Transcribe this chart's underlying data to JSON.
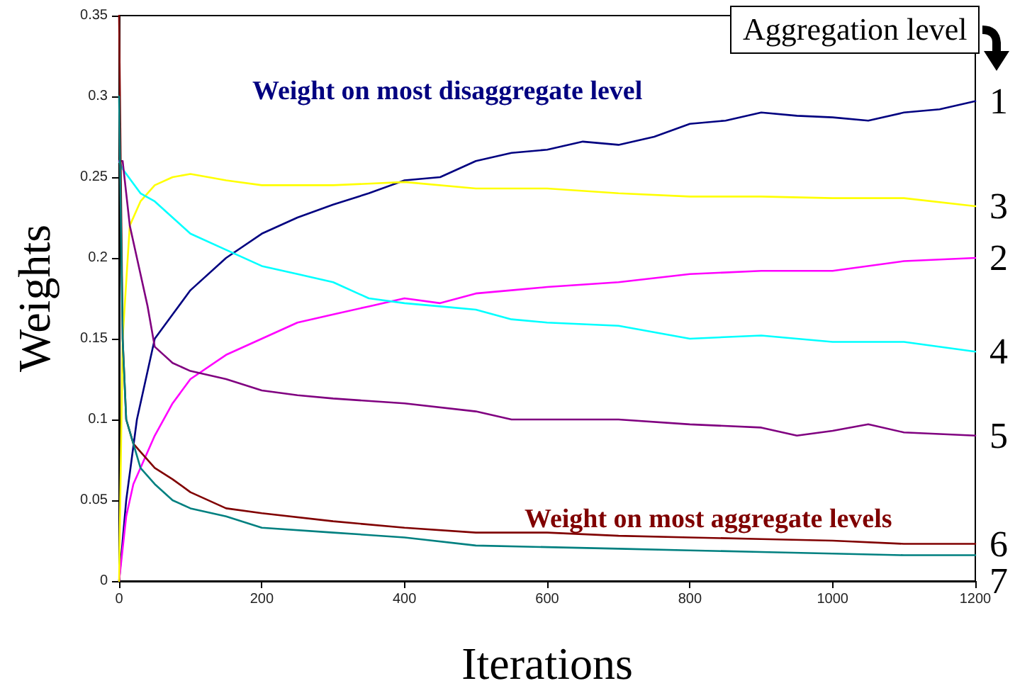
{
  "chart_data": {
    "type": "line",
    "xlabel": "Iterations",
    "ylabel": "Weights",
    "legend_title": "Aggregation level",
    "annotations": [
      "Weight on most disaggregate level",
      "Weight on most aggregate levels"
    ],
    "xlim": [
      0,
      1200
    ],
    "xticks": [
      0,
      200,
      400,
      600,
      800,
      1000,
      1200
    ],
    "ylim": [
      0,
      0.35
    ],
    "yticks": [
      0,
      0.05,
      0.1,
      0.15,
      0.2,
      0.25,
      0.3,
      0.35
    ],
    "grid": false,
    "legend": false,
    "marker": "none",
    "line_style": "solid",
    "series": [
      {
        "name": "1",
        "color": "#000080",
        "x": [
          0,
          10,
          25,
          50,
          75,
          100,
          150,
          200,
          250,
          300,
          350,
          400,
          450,
          500,
          550,
          600,
          650,
          700,
          750,
          800,
          850,
          900,
          950,
          1000,
          1050,
          1100,
          1150,
          1200
        ],
        "values": [
          0,
          0.05,
          0.1,
          0.15,
          0.165,
          0.18,
          0.2,
          0.215,
          0.225,
          0.233,
          0.24,
          0.248,
          0.25,
          0.26,
          0.265,
          0.267,
          0.272,
          0.27,
          0.275,
          0.283,
          0.285,
          0.29,
          0.288,
          0.287,
          0.285,
          0.29,
          0.292,
          0.297
        ]
      },
      {
        "name": "2",
        "color": "#ff00ff",
        "x": [
          0,
          10,
          20,
          50,
          75,
          100,
          150,
          200,
          250,
          300,
          350,
          400,
          450,
          500,
          550,
          600,
          700,
          800,
          900,
          1000,
          1100,
          1200
        ],
        "values": [
          0,
          0.04,
          0.06,
          0.09,
          0.11,
          0.125,
          0.14,
          0.15,
          0.16,
          0.165,
          0.17,
          0.175,
          0.172,
          0.178,
          0.18,
          0.182,
          0.185,
          0.19,
          0.192,
          0.192,
          0.198,
          0.2
        ]
      },
      {
        "name": "3",
        "color": "#ffff00",
        "x": [
          0,
          5,
          15,
          30,
          50,
          75,
          100,
          150,
          200,
          300,
          400,
          500,
          600,
          700,
          800,
          900,
          1000,
          1100,
          1200
        ],
        "values": [
          0,
          0.15,
          0.22,
          0.235,
          0.245,
          0.25,
          0.252,
          0.248,
          0.245,
          0.245,
          0.247,
          0.243,
          0.243,
          0.24,
          0.238,
          0.238,
          0.237,
          0.237,
          0.232
        ]
      },
      {
        "name": "4",
        "color": "#00ffff",
        "x": [
          0,
          5,
          30,
          50,
          75,
          100,
          150,
          200,
          250,
          300,
          350,
          400,
          450,
          500,
          550,
          600,
          700,
          800,
          900,
          1000,
          1100,
          1200
        ],
        "values": [
          0.26,
          0.255,
          0.24,
          0.235,
          0.225,
          0.215,
          0.205,
          0.195,
          0.19,
          0.185,
          0.175,
          0.172,
          0.17,
          0.168,
          0.162,
          0.16,
          0.158,
          0.15,
          0.152,
          0.148,
          0.148,
          0.142
        ]
      },
      {
        "name": "5",
        "color": "#800080",
        "x": [
          0,
          5,
          10,
          15,
          25,
          40,
          50,
          75,
          100,
          150,
          200,
          250,
          300,
          400,
          500,
          550,
          600,
          700,
          800,
          900,
          950,
          1000,
          1050,
          1100,
          1200
        ],
        "values": [
          0.26,
          0.26,
          0.24,
          0.22,
          0.2,
          0.17,
          0.145,
          0.135,
          0.13,
          0.125,
          0.118,
          0.115,
          0.113,
          0.11,
          0.105,
          0.1,
          0.1,
          0.1,
          0.097,
          0.095,
          0.09,
          0.093,
          0.097,
          0.092,
          0.09
        ]
      },
      {
        "name": "6",
        "color": "#800000",
        "x": [
          0,
          5,
          10,
          20,
          30,
          50,
          75,
          100,
          150,
          200,
          300,
          400,
          500,
          600,
          700,
          800,
          900,
          1000,
          1100,
          1200
        ],
        "values": [
          0.35,
          0.15,
          0.1,
          0.085,
          0.08,
          0.07,
          0.063,
          0.055,
          0.045,
          0.042,
          0.037,
          0.033,
          0.03,
          0.03,
          0.028,
          0.027,
          0.026,
          0.025,
          0.023,
          0.023
        ]
      },
      {
        "name": "7",
        "color": "#008080",
        "x": [
          0,
          5,
          10,
          20,
          30,
          50,
          75,
          100,
          150,
          200,
          300,
          400,
          500,
          600,
          700,
          800,
          900,
          1000,
          1100,
          1200
        ],
        "values": [
          0.3,
          0.15,
          0.1,
          0.085,
          0.07,
          0.06,
          0.05,
          0.045,
          0.04,
          0.033,
          0.03,
          0.027,
          0.022,
          0.021,
          0.02,
          0.019,
          0.018,
          0.017,
          0.016,
          0.016
        ]
      }
    ]
  }
}
